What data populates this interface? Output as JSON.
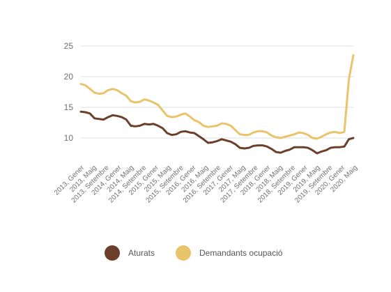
{
  "chart_data": {
    "type": "line",
    "title": "",
    "xlabel": "",
    "ylabel": "",
    "ylim": [
      6,
      25
    ],
    "y_ticks": [
      10,
      15,
      20,
      25
    ],
    "grid": true,
    "legend_position": "bottom",
    "x_tick_labels": [
      "2013, Gener",
      "2013, Maig",
      "2013, Setembre",
      "2014, Gener",
      "2014, Maig",
      "2014, Setembre",
      "2015, Gener",
      "2015, Maig",
      "2015, Setembre",
      "2016, Gener",
      "2016, Maig",
      "2016, Setembre",
      "2017, Gener",
      "2017, Maig",
      "2017, Setembre",
      "2018, Gener",
      "2018, Maig",
      "2018, Setembre",
      "2019, Gener",
      "2019, Maig",
      "2019, Setembre",
      "2020, Gener",
      "2020, Maig"
    ],
    "series": [
      {
        "name": "Aturats",
        "color": "#6b3f2a",
        "values": [
          14.3,
          14.2,
          14.0,
          13.2,
          13.1,
          13.0,
          13.4,
          13.7,
          13.6,
          13.4,
          13.0,
          12.0,
          11.9,
          12.0,
          12.3,
          12.2,
          12.3,
          12.0,
          11.6,
          10.8,
          10.5,
          10.6,
          11.0,
          11.1,
          10.9,
          10.8,
          10.3,
          9.8,
          9.2,
          9.3,
          9.5,
          9.8,
          9.6,
          9.4,
          9.0,
          8.4,
          8.3,
          8.4,
          8.7,
          8.8,
          8.8,
          8.6,
          8.2,
          7.7,
          7.6,
          7.9,
          8.1,
          8.5,
          8.5,
          8.5,
          8.4,
          8.0,
          7.5,
          7.8,
          8.0,
          8.4,
          8.5,
          8.5,
          8.6,
          9.8,
          10.0
        ]
      },
      {
        "name": "Demandants ocupació",
        "color": "#e9c46a",
        "values": [
          18.8,
          18.6,
          18.0,
          17.4,
          17.2,
          17.3,
          17.8,
          18.0,
          17.8,
          17.3,
          16.9,
          16.0,
          15.8,
          15.9,
          16.3,
          16.1,
          15.8,
          15.4,
          14.5,
          13.6,
          13.4,
          13.5,
          13.8,
          14.0,
          13.5,
          12.9,
          12.6,
          12.0,
          11.8,
          11.9,
          12.0,
          12.4,
          12.3,
          12.0,
          11.3,
          10.6,
          10.5,
          10.5,
          10.9,
          11.1,
          11.1,
          10.9,
          10.4,
          10.1,
          10.0,
          10.2,
          10.4,
          10.6,
          10.9,
          10.8,
          10.5,
          10.0,
          9.9,
          10.2,
          10.6,
          10.9,
          11.0,
          10.8,
          11.0,
          19.5,
          23.5
        ]
      }
    ]
  },
  "legend": {
    "items": [
      {
        "label": "Aturats",
        "color": "#6b3f2a"
      },
      {
        "label": "Demandants ocupació",
        "color": "#e9c46a"
      }
    ]
  }
}
